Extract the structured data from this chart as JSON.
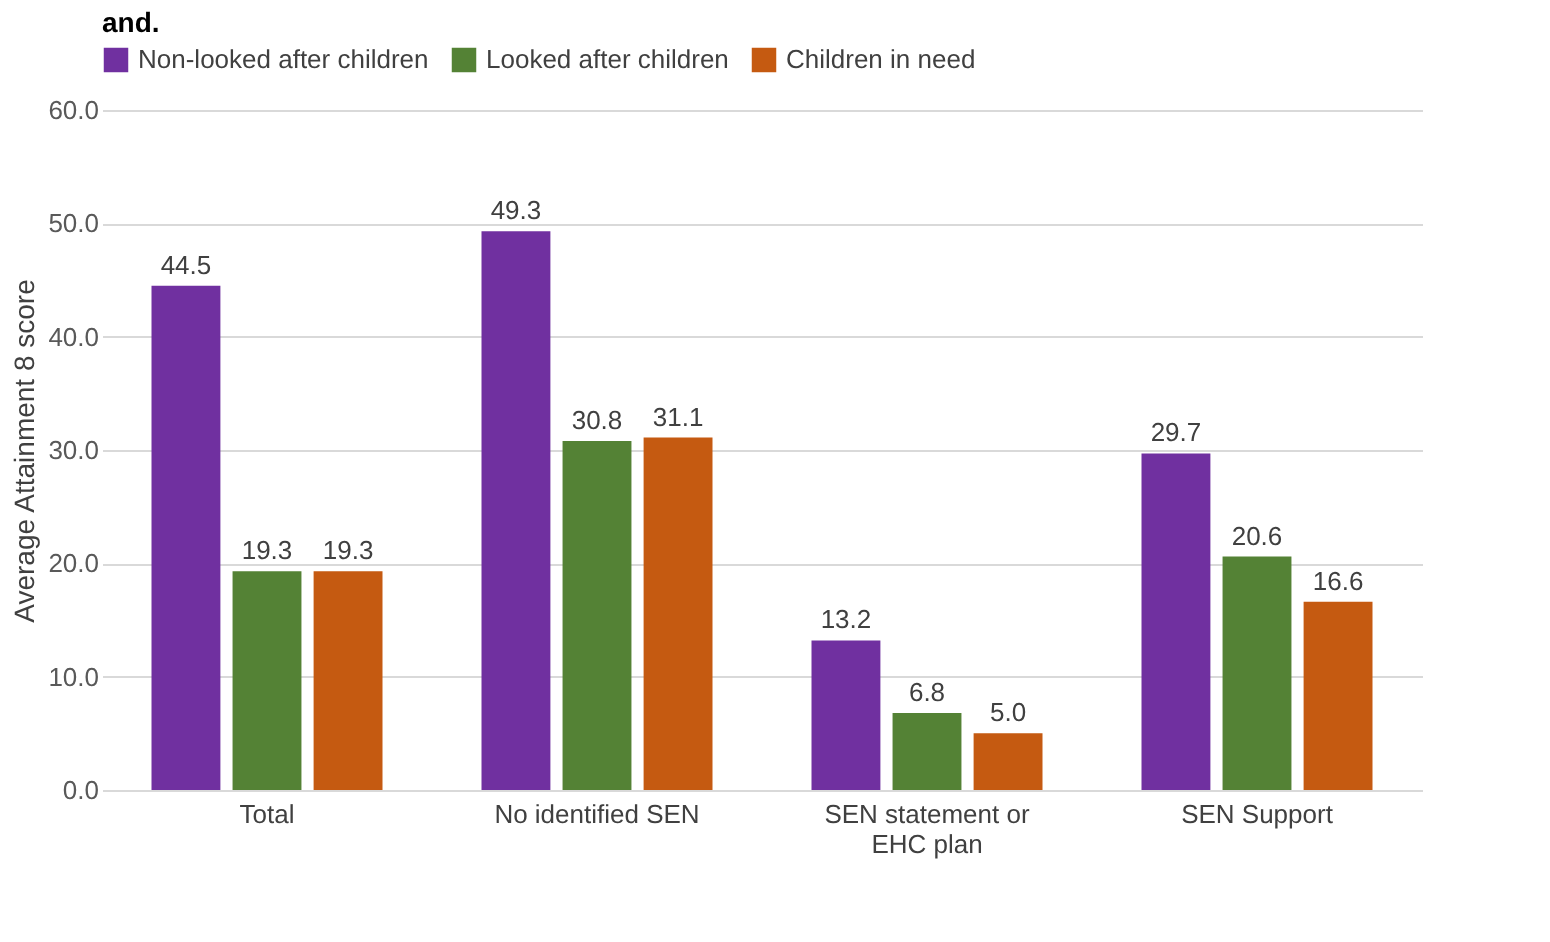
{
  "chart_data": {
    "type": "bar",
    "title": "and.",
    "ylabel": "Average Attainment 8 score",
    "categories": [
      "Total",
      "No identified SEN",
      "SEN statement or EHC plan",
      "SEN Support"
    ],
    "series": [
      {
        "name": "Non-looked after children",
        "color": "#7030a0",
        "values": [
          44.5,
          49.3,
          13.2,
          29.7
        ],
        "value_labels": [
          "44.5",
          "49.3",
          "13.2",
          "29.7"
        ]
      },
      {
        "name": "Looked after children",
        "color": "#548235",
        "values": [
          19.3,
          30.8,
          6.8,
          20.6
        ],
        "value_labels": [
          "19.3",
          "30.8",
          "6.8",
          "20.6"
        ]
      },
      {
        "name": "Children in need",
        "color": "#c55a11",
        "values": [
          19.3,
          31.1,
          5.0,
          16.6
        ],
        "value_labels": [
          "19.3",
          "31.1",
          "5.0",
          "16.6"
        ]
      }
    ],
    "ylim": [
      0,
      60
    ],
    "yticks": [
      {
        "value": 0,
        "label": "0.0"
      },
      {
        "value": 10,
        "label": "10.0"
      },
      {
        "value": 20,
        "label": "20.0"
      },
      {
        "value": 30,
        "label": "30.0"
      },
      {
        "value": 40,
        "label": "40.0"
      },
      {
        "value": 50,
        "label": "50.0"
      },
      {
        "value": 60,
        "label": "60.0"
      }
    ],
    "grid": "y",
    "legend": "top"
  }
}
